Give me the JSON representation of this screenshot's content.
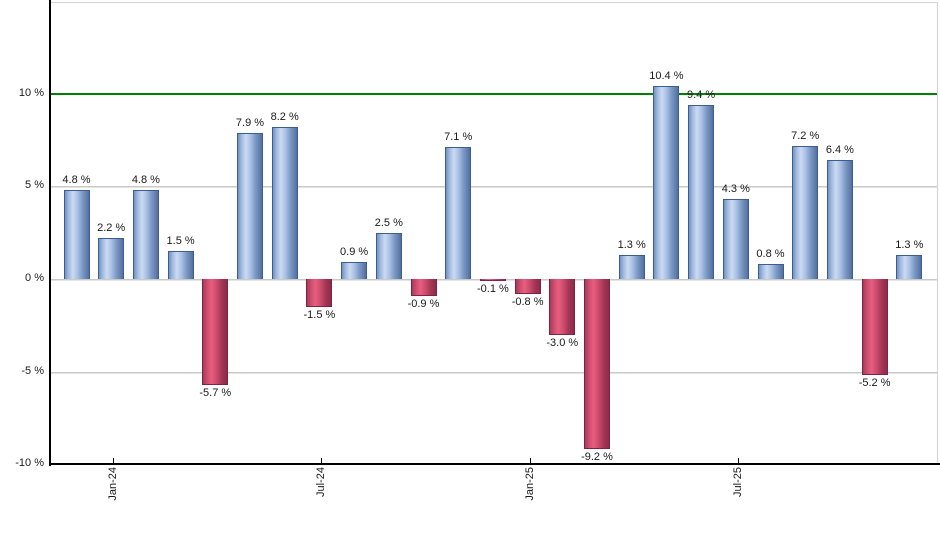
{
  "chart_data": {
    "type": "bar",
    "title": "",
    "xlabel": "",
    "ylabel": "",
    "unit": "%",
    "ylim": [
      -10,
      14.9
    ],
    "grid": true,
    "legend": null,
    "bars": [
      {
        "value": 4.8,
        "label": "4.8 %"
      },
      {
        "value": 2.2,
        "label": "2.2 %"
      },
      {
        "value": 4.8,
        "label": "4.8 %"
      },
      {
        "value": 1.5,
        "label": "1.5 %"
      },
      {
        "value": -5.7,
        "label": "-5.7 %"
      },
      {
        "value": 7.9,
        "label": "7.9 %"
      },
      {
        "value": 8.2,
        "label": "8.2 %"
      },
      {
        "value": -1.5,
        "label": "-1.5 %"
      },
      {
        "value": 0.9,
        "label": "0.9 %"
      },
      {
        "value": 2.5,
        "label": "2.5 %"
      },
      {
        "value": -0.9,
        "label": "-0.9 %"
      },
      {
        "value": 7.1,
        "label": "7.1 %"
      },
      {
        "value": -0.1,
        "label": "-0.1 %"
      },
      {
        "value": -0.8,
        "label": "-0.8 %"
      },
      {
        "value": -3.0,
        "label": "-3.0 %"
      },
      {
        "value": -9.2,
        "label": "-9.2 %"
      },
      {
        "value": 1.3,
        "label": "1.3 %"
      },
      {
        "value": 10.4,
        "label": "10.4 %"
      },
      {
        "value": 9.4,
        "label": "9.4 %"
      },
      {
        "value": 4.3,
        "label": "4.3 %"
      },
      {
        "value": 0.8,
        "label": "0.8 %"
      },
      {
        "value": 7.2,
        "label": "7.2 %"
      },
      {
        "value": 6.4,
        "label": "6.4 %"
      },
      {
        "value": -5.2,
        "label": "-5.2 %"
      },
      {
        "value": 1.3,
        "label": "1.3 %"
      }
    ],
    "x_ticks": [
      {
        "label": "Jan-24",
        "bar_index": 1
      },
      {
        "label": "Jul-24",
        "bar_index": 7
      },
      {
        "label": "Jan-25",
        "bar_index": 13
      },
      {
        "label": "Jul-25",
        "bar_index": 19
      }
    ],
    "y_ticks": [
      {
        "value": 10,
        "label": "10 %",
        "line": "reference"
      },
      {
        "value": 5,
        "label": "5 %",
        "line": "grid"
      },
      {
        "value": 0,
        "label": "0 %",
        "line": "grid"
      },
      {
        "value": -5,
        "label": "-5 %",
        "line": "grid"
      },
      {
        "value": -10,
        "label": "-10 %",
        "line": "axis"
      }
    ],
    "reference_line": {
      "value": 10,
      "color": "#008000"
    },
    "colors": {
      "positive_light": "#cbdaf2",
      "positive_mid": "#7394c4",
      "positive_dark": "#54709f",
      "positive_border": "#3d5d91",
      "negative_light": "#e85e80",
      "negative_mid": "#d45070",
      "negative_dark": "#8c2b49",
      "negative_border": "#7e2344",
      "grid": "#c9c9c9",
      "axis": "#000000",
      "label_text": "#1a1a1a"
    }
  }
}
